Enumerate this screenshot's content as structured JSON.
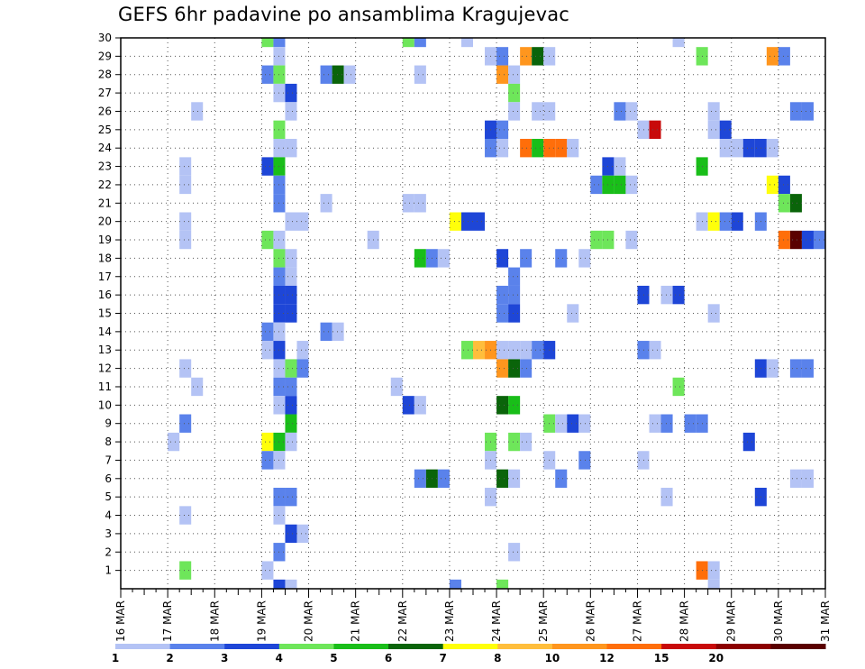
{
  "chart_data": {
    "type": "heatmap",
    "title": "GEFS 6hr padavine po ansamblima Kragujevac",
    "xlabel": "",
    "ylabel": "",
    "x_tick_labels": [
      "16 MAR",
      "17 MAR",
      "18 MAR",
      "19 MAR",
      "20 MAR",
      "21 MAR",
      "22 MAR",
      "23 MAR",
      "24 MAR",
      "25 MAR",
      "26 MAR",
      "27 MAR",
      "28 MAR",
      "29 MAR",
      "30 MAR",
      "31 MAR"
    ],
    "y_tick_labels": [
      "1",
      "2",
      "3",
      "4",
      "5",
      "6",
      "7",
      "8",
      "9",
      "10",
      "11",
      "12",
      "13",
      "14",
      "15",
      "16",
      "17",
      "18",
      "19",
      "20",
      "21",
      "22",
      "23",
      "24",
      "25",
      "26",
      "27",
      "28",
      "29",
      "30"
    ],
    "xlim_days": [
      16,
      31
    ],
    "ylim_members": [
      0,
      30
    ],
    "steps_per_day": 4,
    "grid": true,
    "legend_position": "bottom",
    "colorbar": {
      "labels": [
        "1",
        "2",
        "3",
        "4",
        "5",
        "6",
        "7",
        "8",
        "10",
        "12",
        "15",
        "20"
      ],
      "colors": [
        "#b4c3f5",
        "#5a82eb",
        "#1e46d7",
        "#6ee65a",
        "#19be19",
        "#0a640a",
        "#ffff0a",
        "#ffbe3c",
        "#ff961e",
        "#ff6e0a",
        "#c80a0a",
        "#8c0000",
        "#5a0000"
      ]
    },
    "cells": [
      [
        30,
        3.0,
        4
      ],
      [
        30,
        3.25,
        2
      ],
      [
        30,
        6.0,
        4
      ],
      [
        30,
        6.25,
        2
      ],
      [
        30,
        7.25,
        1
      ],
      [
        30,
        11.75,
        1
      ],
      [
        29,
        3.25,
        1
      ],
      [
        29,
        7.75,
        1
      ],
      [
        29,
        8.0,
        2
      ],
      [
        29,
        8.5,
        9
      ],
      [
        29,
        8.75,
        6
      ],
      [
        29,
        9.0,
        1
      ],
      [
        29,
        12.25,
        4
      ],
      [
        29,
        13.75,
        9
      ],
      [
        29,
        14.0,
        2
      ],
      [
        28,
        3.0,
        2
      ],
      [
        28,
        3.25,
        4
      ],
      [
        28,
        4.25,
        2
      ],
      [
        28,
        4.5,
        6
      ],
      [
        28,
        4.75,
        1
      ],
      [
        28,
        6.25,
        1
      ],
      [
        28,
        8.0,
        9
      ],
      [
        28,
        8.25,
        1
      ],
      [
        27,
        3.25,
        1
      ],
      [
        27,
        3.5,
        3
      ],
      [
        27,
        8.25,
        4
      ],
      [
        26,
        1.5,
        1
      ],
      [
        26,
        3.5,
        1
      ],
      [
        26,
        8.25,
        1
      ],
      [
        26,
        8.75,
        1
      ],
      [
        26,
        9.0,
        1
      ],
      [
        26,
        10.5,
        2
      ],
      [
        26,
        10.75,
        1
      ],
      [
        26,
        12.5,
        1
      ],
      [
        26,
        14.25,
        2
      ],
      [
        26,
        14.5,
        2
      ],
      [
        25,
        3.25,
        4
      ],
      [
        25,
        7.75,
        3
      ],
      [
        25,
        8.0,
        2
      ],
      [
        25,
        11.0,
        1
      ],
      [
        25,
        11.25,
        11
      ],
      [
        25,
        12.5,
        1
      ],
      [
        25,
        12.75,
        3
      ],
      [
        24,
        3.25,
        1
      ],
      [
        24,
        3.5,
        1
      ],
      [
        24,
        7.75,
        2
      ],
      [
        24,
        8.0,
        1
      ],
      [
        24,
        8.5,
        10
      ],
      [
        24,
        8.75,
        5
      ],
      [
        24,
        9.0,
        10
      ],
      [
        24,
        9.25,
        10
      ],
      [
        24,
        9.5,
        1
      ],
      [
        24,
        12.75,
        1
      ],
      [
        24,
        13.0,
        1
      ],
      [
        24,
        13.25,
        3
      ],
      [
        24,
        13.5,
        3
      ],
      [
        24,
        13.75,
        1
      ],
      [
        23,
        1.25,
        1
      ],
      [
        23,
        3.0,
        3
      ],
      [
        23,
        3.25,
        5
      ],
      [
        23,
        10.25,
        3
      ],
      [
        23,
        10.5,
        1
      ],
      [
        23,
        12.25,
        5
      ],
      [
        22,
        1.25,
        1
      ],
      [
        22,
        3.25,
        2
      ],
      [
        22,
        10.0,
        2
      ],
      [
        22,
        10.25,
        5
      ],
      [
        22,
        10.5,
        5
      ],
      [
        22,
        10.75,
        1
      ],
      [
        22,
        13.75,
        7
      ],
      [
        22,
        14.0,
        3
      ],
      [
        21,
        3.25,
        2
      ],
      [
        21,
        4.25,
        1
      ],
      [
        21,
        6.0,
        1
      ],
      [
        21,
        6.25,
        1
      ],
      [
        21,
        14.0,
        4
      ],
      [
        21,
        14.25,
        6
      ],
      [
        20,
        1.25,
        1
      ],
      [
        20,
        3.5,
        1
      ],
      [
        20,
        3.75,
        1
      ],
      [
        20,
        7.0,
        7
      ],
      [
        20,
        7.25,
        3
      ],
      [
        20,
        7.5,
        3
      ],
      [
        20,
        12.25,
        1
      ],
      [
        20,
        12.5,
        7
      ],
      [
        20,
        12.75,
        2
      ],
      [
        20,
        13.0,
        3
      ],
      [
        20,
        13.5,
        2
      ],
      [
        19,
        1.25,
        1
      ],
      [
        19,
        3.0,
        4
      ],
      [
        19,
        3.25,
        1
      ],
      [
        19,
        5.25,
        1
      ],
      [
        19,
        10.0,
        4
      ],
      [
        19,
        10.25,
        4
      ],
      [
        19,
        10.75,
        1
      ],
      [
        19,
        14.0,
        10
      ],
      [
        19,
        14.25,
        13
      ],
      [
        19,
        14.5,
        3
      ],
      [
        19,
        14.75,
        2
      ],
      [
        18,
        3.25,
        4
      ],
      [
        18,
        3.5,
        1
      ],
      [
        18,
        6.25,
        5
      ],
      [
        18,
        6.5,
        2
      ],
      [
        18,
        6.75,
        1
      ],
      [
        18,
        8.0,
        3
      ],
      [
        18,
        8.5,
        2
      ],
      [
        18,
        9.25,
        2
      ],
      [
        18,
        9.75,
        1
      ],
      [
        17,
        3.25,
        2
      ],
      [
        17,
        3.5,
        1
      ],
      [
        17,
        8.25,
        2
      ],
      [
        16,
        3.25,
        3
      ],
      [
        16,
        3.5,
        3
      ],
      [
        16,
        8.0,
        2
      ],
      [
        16,
        8.25,
        2
      ],
      [
        16,
        11.0,
        3
      ],
      [
        16,
        11.5,
        1
      ],
      [
        16,
        11.75,
        3
      ],
      [
        15,
        3.25,
        3
      ],
      [
        15,
        3.5,
        3
      ],
      [
        15,
        8.0,
        2
      ],
      [
        15,
        8.25,
        3
      ],
      [
        15,
        9.5,
        1
      ],
      [
        15,
        12.5,
        1
      ],
      [
        14,
        3.0,
        2
      ],
      [
        14,
        3.25,
        1
      ],
      [
        14,
        4.25,
        2
      ],
      [
        14,
        4.5,
        1
      ],
      [
        13,
        3.0,
        1
      ],
      [
        13,
        3.25,
        3
      ],
      [
        13,
        3.75,
        1
      ],
      [
        13,
        7.25,
        4
      ],
      [
        13,
        7.5,
        8
      ],
      [
        13,
        7.75,
        9
      ],
      [
        13,
        8.0,
        1
      ],
      [
        13,
        8.25,
        1
      ],
      [
        13,
        8.5,
        1
      ],
      [
        13,
        8.75,
        2
      ],
      [
        13,
        9.0,
        3
      ],
      [
        13,
        11.0,
        2
      ],
      [
        13,
        11.25,
        1
      ],
      [
        12,
        1.25,
        1
      ],
      [
        12,
        3.25,
        1
      ],
      [
        12,
        3.5,
        4
      ],
      [
        12,
        3.75,
        2
      ],
      [
        12,
        8.0,
        9
      ],
      [
        12,
        8.25,
        6
      ],
      [
        12,
        8.5,
        2
      ],
      [
        12,
        13.5,
        3
      ],
      [
        12,
        13.75,
        1
      ],
      [
        12,
        14.25,
        2
      ],
      [
        12,
        14.5,
        2
      ],
      [
        11,
        1.5,
        1
      ],
      [
        11,
        3.25,
        2
      ],
      [
        11,
        3.5,
        2
      ],
      [
        11,
        5.75,
        1
      ],
      [
        11,
        11.75,
        4
      ],
      [
        10,
        3.25,
        1
      ],
      [
        10,
        3.5,
        3
      ],
      [
        10,
        6.0,
        3
      ],
      [
        10,
        6.25,
        1
      ],
      [
        10,
        8.0,
        6
      ],
      [
        10,
        8.25,
        5
      ],
      [
        9,
        1.25,
        2
      ],
      [
        9,
        3.5,
        5
      ],
      [
        9,
        9.0,
        4
      ],
      [
        9,
        9.25,
        1
      ],
      [
        9,
        9.5,
        3
      ],
      [
        9,
        9.75,
        1
      ],
      [
        9,
        11.25,
        1
      ],
      [
        9,
        11.5,
        2
      ],
      [
        9,
        12.0,
        2
      ],
      [
        9,
        12.25,
        2
      ],
      [
        8,
        1.0,
        1
      ],
      [
        8,
        3.0,
        7
      ],
      [
        8,
        3.25,
        5
      ],
      [
        8,
        3.5,
        1
      ],
      [
        8,
        7.75,
        4
      ],
      [
        8,
        8.25,
        4
      ],
      [
        8,
        8.5,
        1
      ],
      [
        8,
        13.25,
        3
      ],
      [
        7,
        3.0,
        2
      ],
      [
        7,
        3.25,
        1
      ],
      [
        7,
        7.75,
        1
      ],
      [
        7,
        9.0,
        1
      ],
      [
        7,
        9.75,
        2
      ],
      [
        7,
        11.0,
        1
      ],
      [
        6,
        6.25,
        2
      ],
      [
        6,
        6.5,
        6
      ],
      [
        6,
        6.75,
        2
      ],
      [
        6,
        8.0,
        6
      ],
      [
        6,
        8.25,
        1
      ],
      [
        6,
        9.25,
        2
      ],
      [
        6,
        14.25,
        1
      ],
      [
        6,
        14.5,
        1
      ],
      [
        5,
        3.25,
        2
      ],
      [
        5,
        3.5,
        2
      ],
      [
        5,
        7.75,
        1
      ],
      [
        5,
        11.5,
        1
      ],
      [
        5,
        13.5,
        3
      ],
      [
        4,
        1.25,
        1
      ],
      [
        4,
        3.25,
        1
      ],
      [
        3,
        3.5,
        3
      ],
      [
        3,
        3.75,
        1
      ],
      [
        2,
        3.25,
        2
      ],
      [
        2,
        8.25,
        1
      ],
      [
        1,
        1.25,
        4
      ],
      [
        1,
        3.0,
        1
      ],
      [
        1,
        12.25,
        10
      ],
      [
        1,
        12.5,
        1
      ],
      [
        0,
        3.25,
        3
      ],
      [
        0,
        3.5,
        1
      ],
      [
        0,
        7.0,
        2
      ],
      [
        0,
        8.0,
        4
      ],
      [
        0,
        12.5,
        1
      ]
    ]
  }
}
